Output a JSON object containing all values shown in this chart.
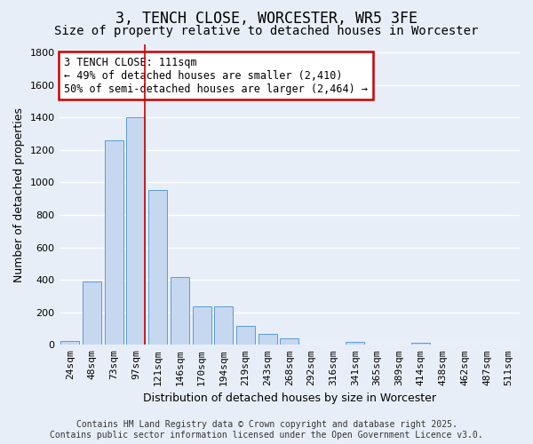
{
  "title": "3, TENCH CLOSE, WORCESTER, WR5 3FE",
  "subtitle": "Size of property relative to detached houses in Worcester",
  "xlabel": "Distribution of detached houses by size in Worcester",
  "ylabel": "Number of detached properties",
  "categories": [
    "24sqm",
    "48sqm",
    "73sqm",
    "97sqm",
    "121sqm",
    "146sqm",
    "170sqm",
    "194sqm",
    "219sqm",
    "243sqm",
    "268sqm",
    "292sqm",
    "316sqm",
    "341sqm",
    "365sqm",
    "389sqm",
    "414sqm",
    "438sqm",
    "462sqm",
    "487sqm",
    "511sqm"
  ],
  "values": [
    25,
    390,
    1260,
    1400,
    955,
    415,
    235,
    235,
    115,
    65,
    42,
    0,
    0,
    20,
    0,
    0,
    12,
    0,
    0,
    0,
    0
  ],
  "bar_color": "#c5d8f0",
  "bar_edge_color": "#5b9bd5",
  "background_color": "#e8eef8",
  "grid_color": "#ffffff",
  "ylim": [
    0,
    1850
  ],
  "vline_color": "#cc0000",
  "vline_x": 3.42,
  "annotation_line1": "3 TENCH CLOSE: 111sqm",
  "annotation_line2": "← 49% of detached houses are smaller (2,410)",
  "annotation_line3": "50% of semi-detached houses are larger (2,464) →",
  "annotation_box_color": "#ffffff",
  "annotation_box_edge": "#cc0000",
  "footer_line1": "Contains HM Land Registry data © Crown copyright and database right 2025.",
  "footer_line2": "Contains public sector information licensed under the Open Government Licence v3.0.",
  "title_fontsize": 12,
  "subtitle_fontsize": 10,
  "axis_label_fontsize": 9,
  "tick_fontsize": 8,
  "footer_fontsize": 7,
  "annotation_fontsize": 8.5,
  "yticks": [
    0,
    200,
    400,
    600,
    800,
    1000,
    1200,
    1400,
    1600,
    1800
  ]
}
